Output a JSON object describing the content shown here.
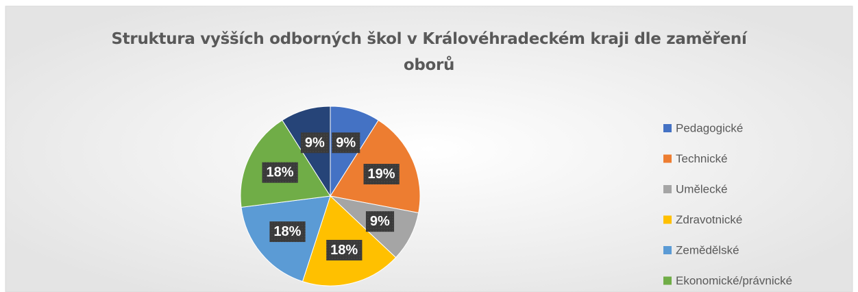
{
  "chart_data": {
    "type": "pie",
    "title": "Struktura vyšších odborných škol v Královéhradeckém kraji dle zaměření oborů",
    "categories": [
      "Pedagogické",
      "Technické",
      "Umělecké",
      "Zdravotnické",
      "Zemědělské",
      "Ekonomické/právnické",
      null
    ],
    "values": [
      9,
      19,
      9,
      18,
      18,
      18,
      9
    ],
    "value_labels": [
      "9%",
      "19%",
      "9%",
      "18%",
      "18%",
      "18%",
      "9%"
    ],
    "colors": [
      "#4472c4",
      "#ed7d31",
      "#a5a5a5",
      "#ffc000",
      "#5b9bd5",
      "#70ad47",
      "#264478"
    ],
    "legend": "right"
  }
}
